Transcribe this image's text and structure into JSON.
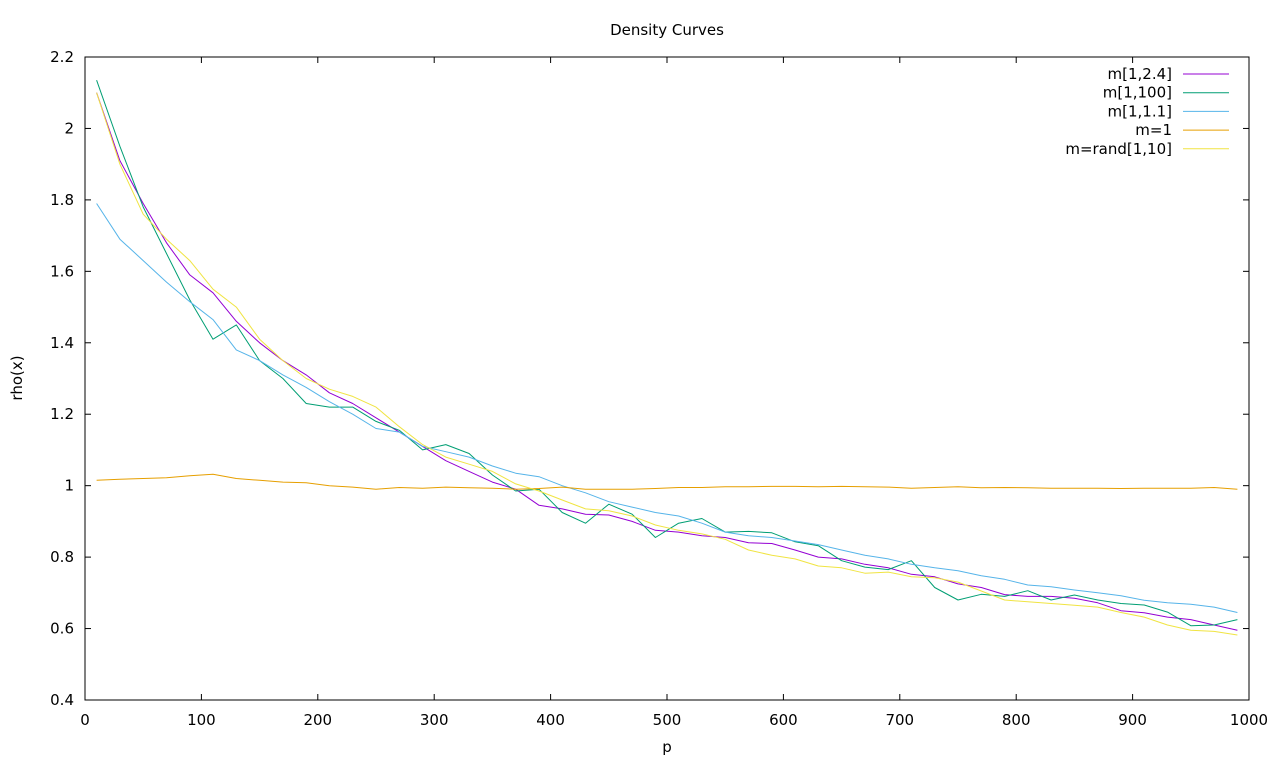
{
  "chart_data": {
    "type": "line",
    "title": "Density Curves",
    "xlabel": "p",
    "ylabel": "rho(x)",
    "xlim": [
      0,
      1000
    ],
    "ylim": [
      0.4,
      2.2
    ],
    "xticks": [
      0,
      100,
      200,
      300,
      400,
      500,
      600,
      700,
      800,
      900,
      1000
    ],
    "xtick_labels": [
      "0",
      "100",
      "200",
      "300",
      "400",
      "500",
      "600",
      "700",
      "800",
      "900",
      "1000"
    ],
    "yticks": [
      0.4,
      0.6,
      0.8,
      1.0,
      1.2,
      1.4,
      1.6,
      1.8,
      2.0,
      2.2
    ],
    "ytick_labels": [
      "0.4",
      "0.6",
      "0.8",
      "1",
      "1.2",
      "1.4",
      "1.6",
      "1.8",
      "2",
      "2.2"
    ],
    "grid": false,
    "legend_position": "top-right",
    "x": [
      10,
      30,
      50,
      70,
      90,
      110,
      130,
      150,
      170,
      190,
      210,
      230,
      250,
      270,
      290,
      310,
      330,
      350,
      370,
      390,
      410,
      430,
      450,
      470,
      490,
      510,
      530,
      550,
      570,
      590,
      610,
      630,
      650,
      670,
      690,
      710,
      730,
      750,
      770,
      790,
      810,
      830,
      850,
      870,
      890,
      910,
      930,
      950,
      970,
      990
    ],
    "series": [
      {
        "name": "m[1,2.4]",
        "color": "#9400d3",
        "values": [
          2.1,
          1.91,
          1.79,
          1.68,
          1.59,
          1.54,
          1.46,
          1.4,
          1.35,
          1.31,
          1.26,
          1.23,
          1.19,
          1.15,
          1.11,
          1.07,
          1.04,
          1.01,
          0.99,
          0.945,
          0.935,
          0.92,
          0.918,
          0.9,
          0.875,
          0.87,
          0.86,
          0.855,
          0.84,
          0.838,
          0.82,
          0.8,
          0.795,
          0.78,
          0.77,
          0.752,
          0.745,
          0.725,
          0.715,
          0.695,
          0.69,
          0.69,
          0.685,
          0.672,
          0.65,
          0.644,
          0.632,
          0.625,
          0.61,
          0.595
        ]
      },
      {
        "name": "m[1,100]",
        "color": "#009e73",
        "values": [
          2.135,
          1.95,
          1.78,
          1.65,
          1.52,
          1.41,
          1.45,
          1.35,
          1.3,
          1.23,
          1.22,
          1.22,
          1.18,
          1.155,
          1.1,
          1.115,
          1.09,
          1.03,
          0.985,
          0.99,
          0.925,
          0.895,
          0.948,
          0.92,
          0.855,
          0.895,
          0.908,
          0.87,
          0.872,
          0.868,
          0.843,
          0.832,
          0.79,
          0.772,
          0.765,
          0.79,
          0.715,
          0.68,
          0.696,
          0.69,
          0.706,
          0.68,
          0.694,
          0.68,
          0.67,
          0.666,
          0.646,
          0.608,
          0.61,
          0.625
        ]
      },
      {
        "name": "m[1,1.1]",
        "color": "#56b4e9",
        "values": [
          1.79,
          1.69,
          1.63,
          1.57,
          1.515,
          1.465,
          1.38,
          1.35,
          1.31,
          1.275,
          1.235,
          1.2,
          1.16,
          1.15,
          1.11,
          1.095,
          1.08,
          1.055,
          1.035,
          1.025,
          1.0,
          0.98,
          0.955,
          0.94,
          0.925,
          0.915,
          0.895,
          0.87,
          0.86,
          0.855,
          0.845,
          0.835,
          0.82,
          0.805,
          0.795,
          0.78,
          0.77,
          0.762,
          0.748,
          0.738,
          0.722,
          0.717,
          0.708,
          0.7,
          0.692,
          0.679,
          0.672,
          0.668,
          0.66,
          0.645
        ]
      },
      {
        "name": "m=1",
        "color": "#e69f00",
        "values": [
          1.015,
          1.018,
          1.02,
          1.022,
          1.028,
          1.032,
          1.02,
          1.015,
          1.01,
          1.008,
          1.0,
          0.996,
          0.99,
          0.995,
          0.993,
          0.996,
          0.994,
          0.993,
          0.99,
          0.992,
          0.996,
          0.99,
          0.99,
          0.99,
          0.992,
          0.995,
          0.995,
          0.997,
          0.997,
          0.998,
          0.998,
          0.997,
          0.998,
          0.997,
          0.996,
          0.993,
          0.995,
          0.997,
          0.994,
          0.995,
          0.994,
          0.993,
          0.993,
          0.993,
          0.992,
          0.993,
          0.993,
          0.993,
          0.995,
          0.99
        ]
      },
      {
        "name": "m=rand[1,10]",
        "color": "#f0e442",
        "values": [
          2.1,
          1.9,
          1.76,
          1.69,
          1.63,
          1.55,
          1.5,
          1.41,
          1.35,
          1.3,
          1.27,
          1.25,
          1.22,
          1.165,
          1.115,
          1.08,
          1.06,
          1.04,
          1.005,
          0.985,
          0.96,
          0.935,
          0.93,
          0.915,
          0.89,
          0.875,
          0.865,
          0.85,
          0.82,
          0.805,
          0.795,
          0.775,
          0.77,
          0.755,
          0.758,
          0.745,
          0.742,
          0.73,
          0.705,
          0.68,
          0.675,
          0.67,
          0.665,
          0.66,
          0.645,
          0.632,
          0.61,
          0.595,
          0.592,
          0.582
        ]
      }
    ]
  }
}
